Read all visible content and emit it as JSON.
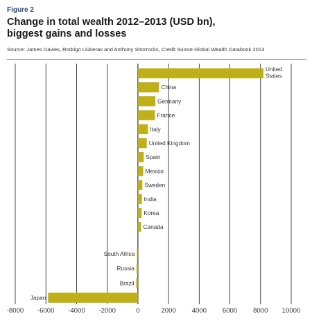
{
  "figure_label": "Figure 2",
  "title_line1": "Change in total wealth 2012–2013 (USD bn),",
  "title_line2": "biggest gains and losses",
  "source": "Source: James Davies, Rodrigo Lluberas and Anthony Shorrocks, Credit Suisse Global Wealth Databook 2013",
  "colors": {
    "bar": "#bfb01a",
    "grid": "#1a1a1a"
  },
  "chart_data": {
    "type": "bar",
    "orientation": "horizontal",
    "title": "Change in total wealth 2012–2013 (USD bn), biggest gains and losses",
    "xlabel": "",
    "ylabel": "",
    "xlim": [
      -8000,
      10000
    ],
    "xticks": [
      -8000,
      -6000,
      -4000,
      -2000,
      0,
      2000,
      4000,
      6000,
      8000,
      10000
    ],
    "grid": "vertical",
    "legend": "none",
    "categories": [
      "United States",
      "China",
      "Germany",
      "France",
      "Italy",
      "United Kingdom",
      "Spain",
      "Mexico",
      "Sweden",
      "India",
      "Korea",
      "Canada",
      "South Africa",
      "Russia",
      "Brazil",
      "Japan"
    ],
    "category_labels": [
      [
        "United",
        "States"
      ],
      [
        "China"
      ],
      [
        "Germany"
      ],
      [
        "France"
      ],
      [
        "Italy"
      ],
      [
        "United Kingdom"
      ],
      [
        "Spain"
      ],
      [
        "Mexico"
      ],
      [
        "Sweden"
      ],
      [
        "India"
      ],
      [
        "Korea"
      ],
      [
        "Canada"
      ],
      [
        "South Africa"
      ],
      [
        "Russia"
      ],
      [
        "Brazil"
      ],
      [
        "Japan"
      ]
    ],
    "values": [
      8190,
      1380,
      1140,
      1110,
      660,
      580,
      380,
      350,
      290,
      260,
      240,
      210,
      -70,
      -90,
      -110,
      -5860
    ]
  }
}
